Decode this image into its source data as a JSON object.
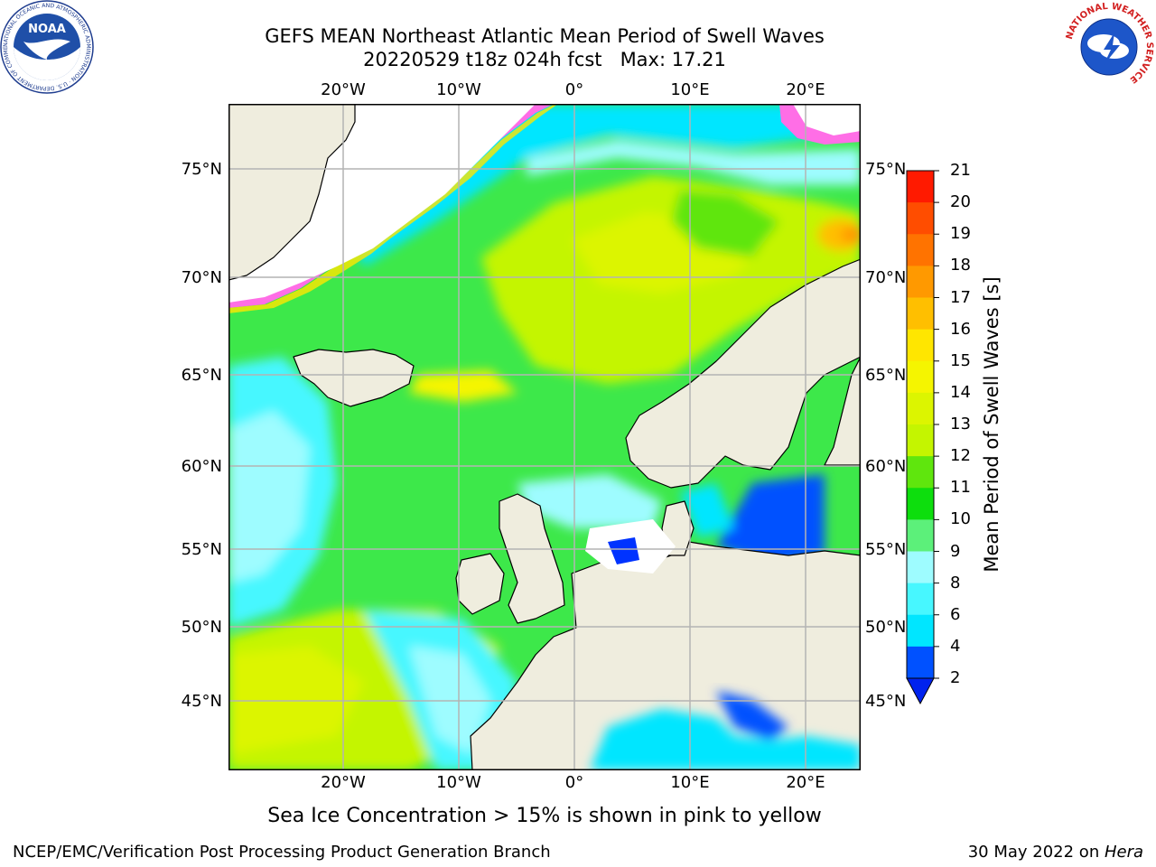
{
  "title": {
    "line1": "GEFS MEAN Northeast Atlantic Mean Period of Swell Waves",
    "line2": "20220529 t18z 024h fcst   Max: 17.21"
  },
  "logos": {
    "noaa": {
      "text": "NOAA",
      "ring_text": "NATIONAL OCEANIC AND ATMOSPHERIC ADMINISTRATION · U.S. DEPARTMENT OF COMMERCE"
    },
    "nws": {
      "ring_text": "NATIONAL WEATHER SERVICE"
    }
  },
  "map": {
    "lon_labels": [
      "20°W",
      "10°W",
      "0°",
      "10°E",
      "20°E"
    ],
    "lat_labels": [
      "75°N",
      "70°N",
      "65°N",
      "60°N",
      "55°N",
      "50°N",
      "45°N"
    ],
    "colors": {
      "land": "#efedde",
      "gridline": "#b4b4b4",
      "coast": "#000000"
    }
  },
  "colorbar": {
    "title": "Mean Period of Swell Waves [s]",
    "ticks": [
      "2",
      "4",
      "6",
      "8",
      "9",
      "10",
      "11",
      "12",
      "13",
      "14",
      "15",
      "16",
      "17",
      "18",
      "19",
      "20",
      "21"
    ],
    "colors": [
      "#0051ff",
      "#00e6ff",
      "#47f7ff",
      "#9efcff",
      "#5cf07a",
      "#0dde0d",
      "#5fe60d",
      "#c4f500",
      "#dcf500",
      "#f5f500",
      "#ffe600",
      "#ffbf00",
      "#ff9900",
      "#ff7300",
      "#ff4d00",
      "#ff1a00"
    ],
    "under_color": "#0022ee"
  },
  "caption": "Sea Ice Concentration > 15% is shown in pink to yellow",
  "footer": {
    "left": "NCEP/EMC/Verification Post Processing Product Generation Branch",
    "right_date": "30 May 2022 on ",
    "right_host": "Hera"
  }
}
